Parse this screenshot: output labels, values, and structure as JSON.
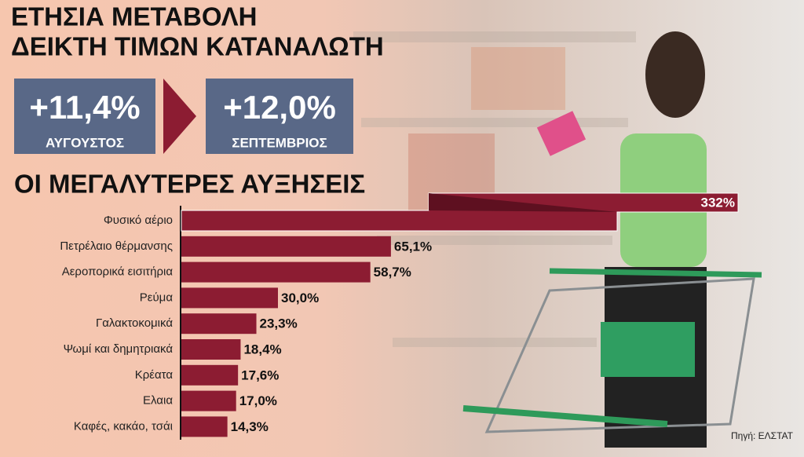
{
  "chart_data": {
    "type": "bar",
    "title": [
      "ΕΤΗΣΙΑ ΜΕΤΑΒΟΛΗ",
      "ΔΕΙΚΤΗ ΤΙΜΩΝ ΚΑΤΑΝΑΛΩΤΗ"
    ],
    "highlights": [
      {
        "label": "+11,4%",
        "period": "ΑΥΓΟΥΣΤΟΣ"
      },
      {
        "label": "+12,0%",
        "period": "ΣΕΠΤΕΜΒΡΙΟΣ"
      }
    ],
    "subtitle": "ΟΙ ΜΕΓΑΛΥΤΕΡΕΣ ΑΥΞΗΣΕΙΣ",
    "categories": [
      "Φυσικό αέριο",
      "Πετρέλαιο θέρμανσης",
      "Αεροπορικά εισιτήρια",
      "Ρεύμα",
      "Γαλακτοκομικά",
      "Ψωμί και δημητριακά",
      "Κρέατα",
      "Ελαια",
      "Καφές, κακάο, τσάι"
    ],
    "values": [
      332,
      65.1,
      58.7,
      30.0,
      23.3,
      18.4,
      17.6,
      17.0,
      14.3
    ],
    "value_labels": [
      "332%",
      "65,1%",
      "58,7%",
      "30,0%",
      "23,3%",
      "18,4%",
      "17,6%",
      "17,0%",
      "14,3%"
    ],
    "color": "#8c1c32",
    "source": "Πηγή: ΕΛΣΤΑΤ"
  }
}
